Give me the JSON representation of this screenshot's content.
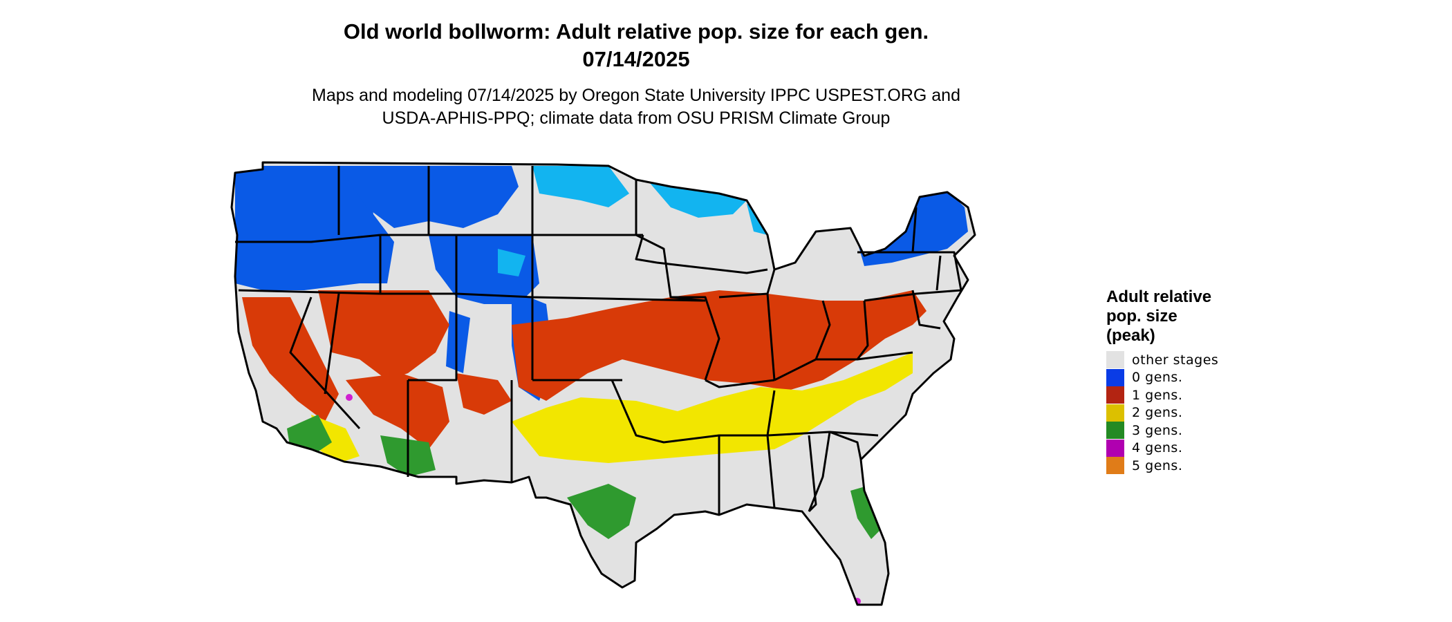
{
  "title": {
    "line1": "Old world bollworm: Adult relative pop. size for each gen.",
    "line2": "07/14/2025"
  },
  "subtitle": {
    "line1": "Maps and modeling 07/14/2025 by Oregon State University IPPC USPEST.ORG and",
    "line2": "USDA-APHIS-PPQ; climate data from OSU PRISM Climate Group"
  },
  "legend": {
    "title_lines": [
      "Adult relative",
      "pop. size",
      "(peak)"
    ],
    "items": [
      {
        "label": "other stages",
        "color": "#e2e2e2"
      },
      {
        "label": "0 gens.",
        "color": "#0a3ce6"
      },
      {
        "label": "1 gens.",
        "color": "#b32412"
      },
      {
        "label": "2 gens.",
        "color": "#dcc000"
      },
      {
        "label": "3 gens.",
        "color": "#238a23"
      },
      {
        "label": "4 gens.",
        "color": "#b000b0"
      },
      {
        "label": "5 gens.",
        "color": "#e07c18"
      }
    ]
  },
  "map_colors": {
    "background": "#e2e2e2",
    "cold": "#0a5ae6",
    "cool": "#12b4f0",
    "red": "#d83a08",
    "yellow": "#f2e600",
    "green": "#2f9a2f",
    "magenta": "#d020d0"
  }
}
